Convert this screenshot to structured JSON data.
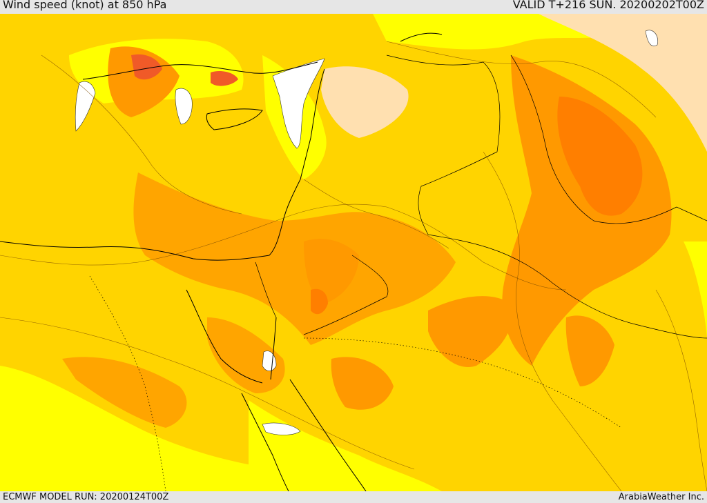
{
  "header": {
    "title": "Wind speed (knot) at 850 hPa",
    "valid": "VALID T+216 SUN. 20200202T00Z"
  },
  "footer": {
    "model_run": "ECMWF MODEL RUN: 20200124T00Z",
    "credit": "ArabiaWeather Inc."
  },
  "map": {
    "field": "wind speed at 850 hPa",
    "colors": {
      "level_1": "#ffffff",
      "level_2": "#ffe0b0",
      "level_3": "#ffff00",
      "level_4": "#ffd700",
      "level_5": "#ffb400",
      "level_6": "#ff9900",
      "level_7": "#ff7f00",
      "level_8": "#f05a28"
    }
  }
}
